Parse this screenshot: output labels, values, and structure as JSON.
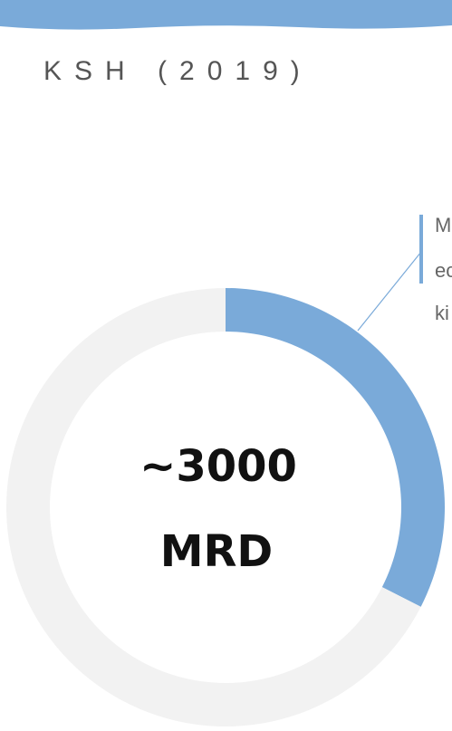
{
  "chart_data": {
    "type": "donut",
    "subtitle": "KSH (2019)",
    "center_label": [
      "~3000",
      "MRD"
    ],
    "values": [
      32.5,
      67.5
    ],
    "colors": [
      "#7aaad9",
      "#f2f2f2"
    ],
    "annotation": [
      "M",
      "ec",
      "ki"
    ]
  }
}
